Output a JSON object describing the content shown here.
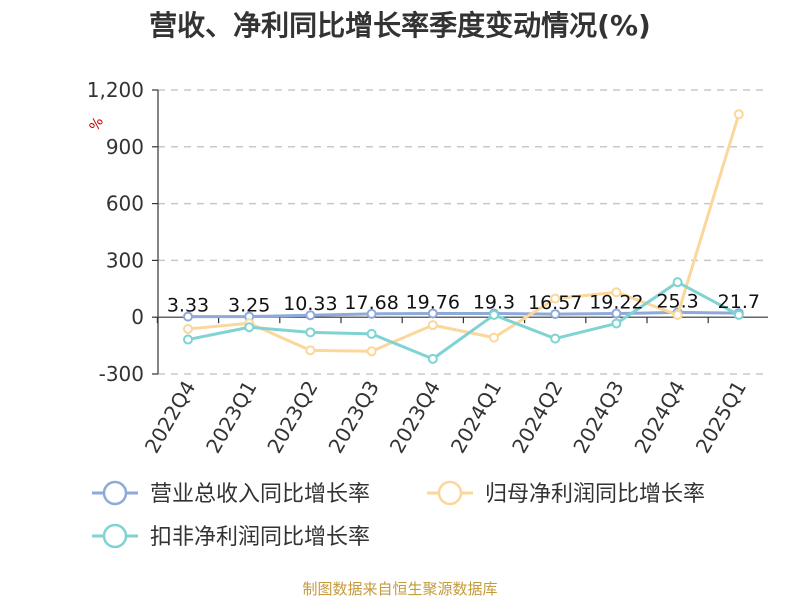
{
  "title": "营收、净利同比增长率季度变动情况(%)",
  "source": "制图数据来自恒生聚源数据库",
  "chart_data": {
    "type": "line",
    "title": "营收、净利同比增长率季度变动情况(%)",
    "unit": "%",
    "categories": [
      "2022Q4",
      "2023Q1",
      "2023Q2",
      "2023Q3",
      "2023Q4",
      "2024Q1",
      "2024Q2",
      "2024Q3",
      "2024Q4",
      "2025Q1"
    ],
    "y_ticks": [
      "-300",
      "0",
      "300",
      "600",
      "900",
      "1,200"
    ],
    "ylim": [
      -300,
      1200
    ],
    "grid": true,
    "series": [
      {
        "name": "营业总收入同比增长率",
        "color": "#8eaadb",
        "values": [
          3.33,
          3.25,
          10.33,
          17.68,
          19.76,
          19.3,
          16.57,
          19.22,
          25.3,
          21.7
        ],
        "labels": [
          "3.33",
          "3.25",
          "10.33",
          "17.68",
          "19.76",
          "19.3",
          "16.57",
          "19.22",
          "25.3",
          "21.7"
        ]
      },
      {
        "name": "归母净利润同比增长率",
        "color": "#fbd79b",
        "values": [
          -62,
          -32,
          -175,
          -180,
          -42,
          -108,
          98,
          132,
          12,
          1072
        ]
      },
      {
        "name": "扣非净利润同比增长率",
        "color": "#7fd3d2",
        "values": [
          -118,
          -53,
          -80,
          -88,
          -220,
          12,
          -113,
          -33,
          185,
          12
        ]
      }
    ]
  }
}
